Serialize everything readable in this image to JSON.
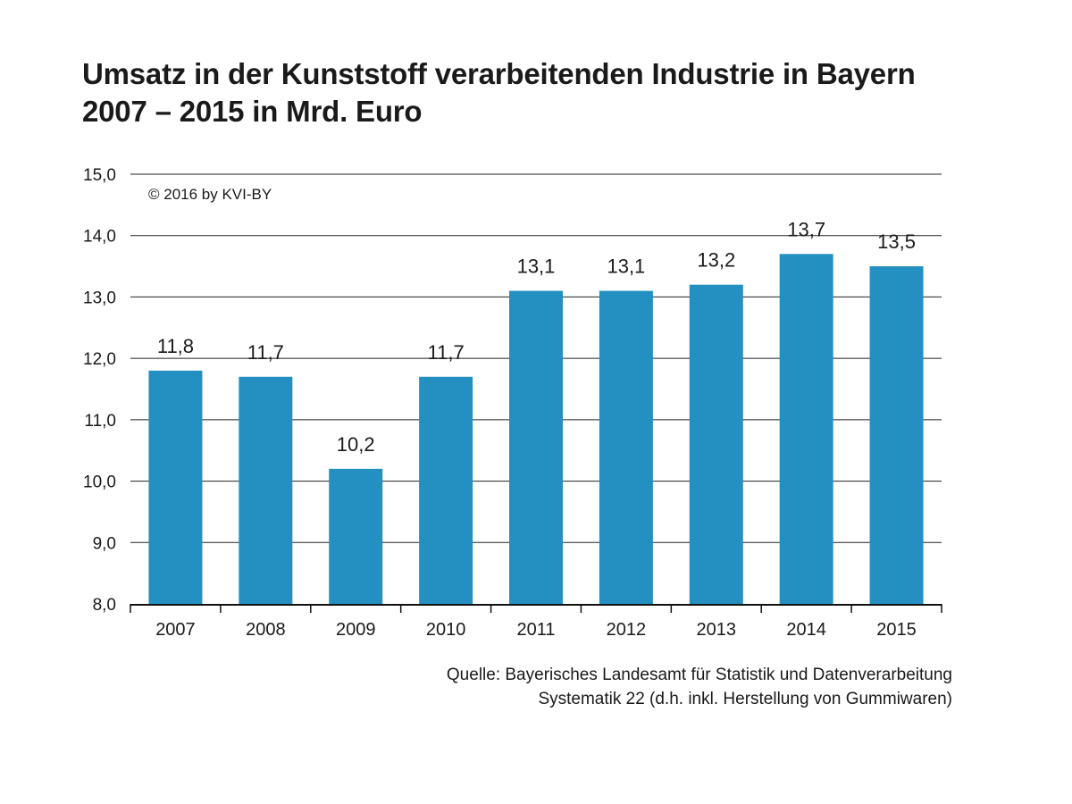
{
  "chart_data": {
    "type": "bar",
    "title": "Umsatz in der Kunststoff verarbeitenden Industrie in Bayern",
    "subtitle": "2007 – 2015 in Mrd. Euro",
    "xlabel": "",
    "ylabel": "",
    "categories": [
      "2007",
      "2008",
      "2009",
      "2010",
      "2011",
      "2012",
      "2013",
      "2014",
      "2015"
    ],
    "values": [
      11.8,
      11.7,
      10.2,
      11.7,
      13.1,
      13.1,
      13.2,
      13.7,
      13.5
    ],
    "value_labels": [
      "11,8",
      "11,7",
      "10,2",
      "11,7",
      "13,1",
      "13,1",
      "13,2",
      "13,7",
      "13,5"
    ],
    "ylim": [
      8.0,
      15.0
    ],
    "y_ticks": [
      8.0,
      9.0,
      10.0,
      11.0,
      12.0,
      13.0,
      14.0,
      15.0
    ],
    "y_tick_labels": [
      "8,0",
      "9,0",
      "10,0",
      "11,0",
      "12,0",
      "13,0",
      "14,0",
      "15,0"
    ],
    "grid": true,
    "legend": "none",
    "bar_color": "#2490c1",
    "annotation": "© 2016 by KVI-BY"
  },
  "source": {
    "line1": "Quelle:  Bayerisches Landesamt für Statistik und Datenverarbeitung",
    "line2": "Systematik 22 (d.h. inkl. Herstellung von Gummiwaren)"
  }
}
